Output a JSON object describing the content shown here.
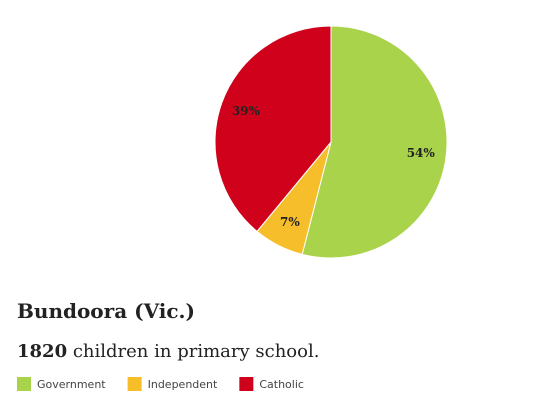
{
  "chart_data": {
    "type": "pie",
    "title": "Bundoora (Vic.)",
    "count": 1820,
    "subtitle": "children in primary school.",
    "categories": [
      "Government",
      "Independent",
      "Catholic"
    ],
    "values": [
      54,
      7,
      39
    ],
    "value_labels": [
      "54%",
      "7%",
      "39%"
    ],
    "colors": [
      "#a8d34a",
      "#f5be2a",
      "#d0021b"
    ],
    "legend": "bottom-left"
  }
}
